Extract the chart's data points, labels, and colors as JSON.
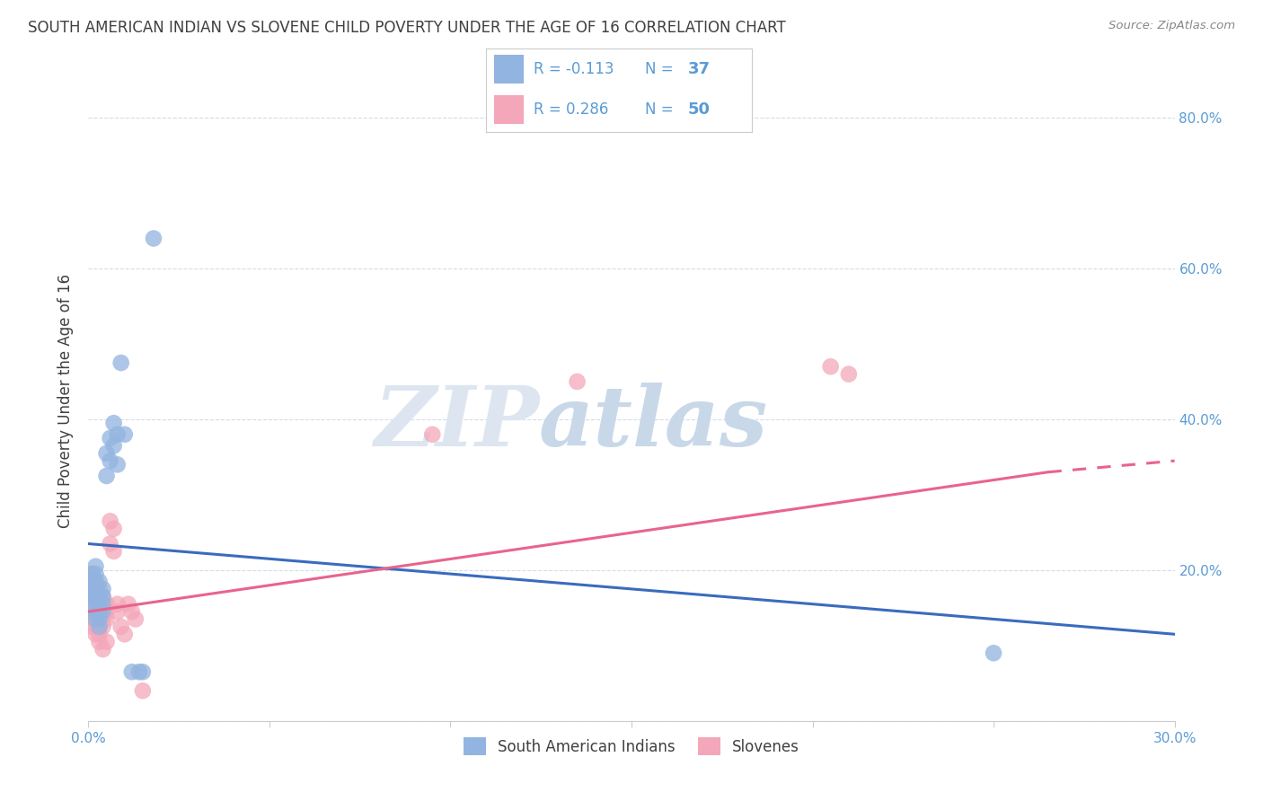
{
  "title": "SOUTH AMERICAN INDIAN VS SLOVENE CHILD POVERTY UNDER THE AGE OF 16 CORRELATION CHART",
  "source": "Source: ZipAtlas.com",
  "ylabel": "Child Poverty Under the Age of 16",
  "xlim": [
    0.0,
    0.3
  ],
  "ylim": [
    0.0,
    0.85
  ],
  "xticks": [
    0.0,
    0.05,
    0.1,
    0.15,
    0.2,
    0.25,
    0.3
  ],
  "yticks": [
    0.0,
    0.2,
    0.4,
    0.6,
    0.8
  ],
  "ytick_labels": [
    "",
    "20.0%",
    "40.0%",
    "60.0%",
    "80.0%"
  ],
  "xtick_labels": [
    "0.0%",
    "",
    "",
    "",
    "",
    "",
    "30.0%"
  ],
  "legend_labels": [
    "South American Indians",
    "Slovenes"
  ],
  "R_blue": -0.113,
  "N_blue": 37,
  "R_pink": 0.286,
  "N_pink": 50,
  "blue_color": "#92b4e0",
  "pink_color": "#f4a7b9",
  "line_blue_color": "#3a6bbf",
  "line_pink_color": "#e8648c",
  "title_color": "#404040",
  "axis_color": "#5b9bd5",
  "blue_scatter": [
    [
      0.001,
      0.195
    ],
    [
      0.001,
      0.185
    ],
    [
      0.001,
      0.175
    ],
    [
      0.001,
      0.165
    ],
    [
      0.002,
      0.205
    ],
    [
      0.002,
      0.195
    ],
    [
      0.002,
      0.185
    ],
    [
      0.002,
      0.175
    ],
    [
      0.002,
      0.165
    ],
    [
      0.002,
      0.155
    ],
    [
      0.002,
      0.145
    ],
    [
      0.002,
      0.135
    ],
    [
      0.003,
      0.185
    ],
    [
      0.003,
      0.165
    ],
    [
      0.003,
      0.155
    ],
    [
      0.003,
      0.145
    ],
    [
      0.003,
      0.135
    ],
    [
      0.003,
      0.125
    ],
    [
      0.004,
      0.175
    ],
    [
      0.004,
      0.165
    ],
    [
      0.004,
      0.155
    ],
    [
      0.004,
      0.145
    ],
    [
      0.005,
      0.355
    ],
    [
      0.005,
      0.325
    ],
    [
      0.006,
      0.375
    ],
    [
      0.006,
      0.345
    ],
    [
      0.007,
      0.395
    ],
    [
      0.007,
      0.365
    ],
    [
      0.008,
      0.38
    ],
    [
      0.008,
      0.34
    ],
    [
      0.009,
      0.475
    ],
    [
      0.01,
      0.38
    ],
    [
      0.012,
      0.065
    ],
    [
      0.014,
      0.065
    ],
    [
      0.015,
      0.065
    ],
    [
      0.018,
      0.64
    ],
    [
      0.25,
      0.09
    ]
  ],
  "pink_scatter": [
    [
      0.001,
      0.195
    ],
    [
      0.001,
      0.185
    ],
    [
      0.001,
      0.175
    ],
    [
      0.001,
      0.165
    ],
    [
      0.001,
      0.155
    ],
    [
      0.001,
      0.145
    ],
    [
      0.001,
      0.135
    ],
    [
      0.001,
      0.125
    ],
    [
      0.002,
      0.185
    ],
    [
      0.002,
      0.175
    ],
    [
      0.002,
      0.165
    ],
    [
      0.002,
      0.155
    ],
    [
      0.002,
      0.145
    ],
    [
      0.002,
      0.135
    ],
    [
      0.002,
      0.125
    ],
    [
      0.002,
      0.115
    ],
    [
      0.003,
      0.175
    ],
    [
      0.003,
      0.165
    ],
    [
      0.003,
      0.155
    ],
    [
      0.003,
      0.145
    ],
    [
      0.003,
      0.135
    ],
    [
      0.003,
      0.125
    ],
    [
      0.003,
      0.115
    ],
    [
      0.003,
      0.105
    ],
    [
      0.004,
      0.165
    ],
    [
      0.004,
      0.155
    ],
    [
      0.004,
      0.145
    ],
    [
      0.004,
      0.135
    ],
    [
      0.004,
      0.125
    ],
    [
      0.004,
      0.095
    ],
    [
      0.005,
      0.155
    ],
    [
      0.005,
      0.145
    ],
    [
      0.005,
      0.135
    ],
    [
      0.005,
      0.105
    ],
    [
      0.006,
      0.265
    ],
    [
      0.006,
      0.235
    ],
    [
      0.007,
      0.255
    ],
    [
      0.007,
      0.225
    ],
    [
      0.008,
      0.155
    ],
    [
      0.008,
      0.145
    ],
    [
      0.009,
      0.125
    ],
    [
      0.01,
      0.115
    ],
    [
      0.011,
      0.155
    ],
    [
      0.012,
      0.145
    ],
    [
      0.013,
      0.135
    ],
    [
      0.015,
      0.04
    ],
    [
      0.095,
      0.38
    ],
    [
      0.135,
      0.45
    ],
    [
      0.205,
      0.47
    ],
    [
      0.21,
      0.46
    ]
  ],
  "blue_line": [
    [
      0.0,
      0.235
    ],
    [
      0.3,
      0.115
    ]
  ],
  "pink_line_solid": [
    [
      0.0,
      0.145
    ],
    [
      0.265,
      0.33
    ]
  ],
  "pink_line_dashed": [
    [
      0.265,
      0.33
    ],
    [
      0.3,
      0.345
    ]
  ],
  "background_color": "#ffffff",
  "grid_color": "#d3dce8"
}
